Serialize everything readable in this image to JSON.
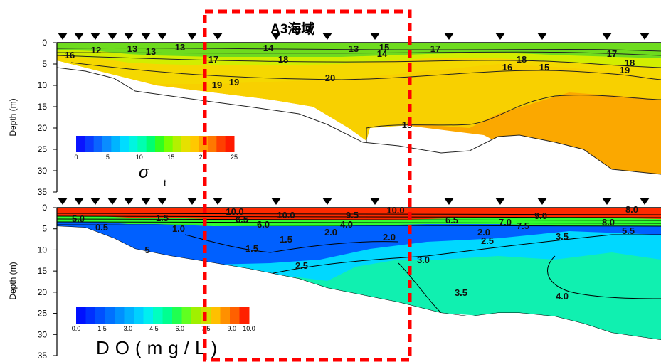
{
  "region_label": "A3海域",
  "chart_data": [
    {
      "type": "heatmap",
      "variable": "σt",
      "colorbar_title": "σ",
      "colorbar_subscript": "t",
      "colorbar_ticks": [
        "0",
        "5",
        "10",
        "15",
        "20",
        "25"
      ],
      "colorbar_range": [
        0,
        25
      ],
      "ylabel": "Depth (m)",
      "yticks": [
        0,
        5,
        10,
        15,
        20,
        25,
        30,
        35
      ],
      "ylim": [
        0,
        35
      ],
      "stations_count": 17,
      "contour_labels": [
        "16",
        "12",
        "13",
        "13",
        "13",
        "14",
        "13",
        "15",
        "14",
        "17",
        "17",
        "18",
        "16",
        "18",
        "15",
        "17",
        "18",
        "19",
        "19",
        "19",
        "20",
        "15"
      ],
      "colors": {
        "surface": "#78e01e",
        "upper": "#d8f000",
        "mid": "#f5d200",
        "deep": "#fba800"
      }
    },
    {
      "type": "heatmap",
      "variable": "DO",
      "colorbar_title": "DO(mg/L)",
      "colorbar_ticks": [
        "0.0",
        "1.5",
        "3.0",
        "4.5",
        "6.0",
        "7.5",
        "9.0",
        "10.0"
      ],
      "colorbar_range": [
        0,
        10
      ],
      "ylabel": "Depth (m)",
      "yticks": [
        0,
        5,
        10,
        15,
        20,
        25,
        30,
        35
      ],
      "ylim": [
        0,
        35
      ],
      "stations_count": 17,
      "contour_labels": [
        "5.0",
        "0.5",
        "1.5",
        "1.0",
        "5",
        "10.0",
        "6.5",
        "6.0",
        "10.0",
        "4.0",
        "9.5",
        "10.0",
        "1.5",
        "2.0",
        "2.0",
        "1.5",
        "2.5",
        "3.0",
        "3.5",
        "6.5",
        "2.0",
        "2.5",
        "7.0",
        "7.5",
        "9.0",
        "8.0",
        "5.5",
        "3.5",
        "4.0",
        "8.0"
      ],
      "colors": {
        "surface": "#ff2b00",
        "upper": "#0050ff",
        "mid": "#00d8ff",
        "deep": "#00ffb0"
      }
    }
  ]
}
